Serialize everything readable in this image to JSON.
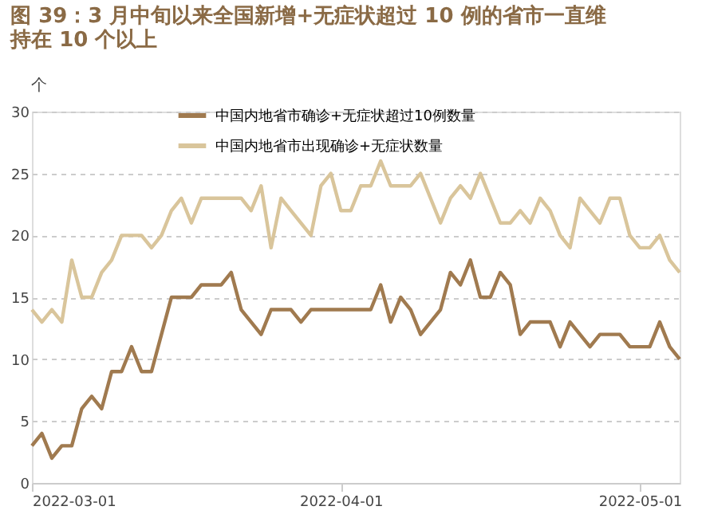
{
  "chart_data": {
    "type": "line",
    "title": "图 39：3 月中旬以来全国新增+无症状超过 10 例的省市一直维持在 10 个以上",
    "ylabel": "个",
    "x": [
      "2022-03-01",
      "2022-03-02",
      "2022-03-03",
      "2022-03-04",
      "2022-03-05",
      "2022-03-06",
      "2022-03-07",
      "2022-03-08",
      "2022-03-09",
      "2022-03-10",
      "2022-03-11",
      "2022-03-12",
      "2022-03-13",
      "2022-03-14",
      "2022-03-15",
      "2022-03-16",
      "2022-03-17",
      "2022-03-18",
      "2022-03-19",
      "2022-03-20",
      "2022-03-21",
      "2022-03-22",
      "2022-03-23",
      "2022-03-24",
      "2022-03-25",
      "2022-03-26",
      "2022-03-27",
      "2022-03-28",
      "2022-03-29",
      "2022-03-30",
      "2022-03-31",
      "2022-04-01",
      "2022-04-02",
      "2022-04-03",
      "2022-04-04",
      "2022-04-05",
      "2022-04-06",
      "2022-04-07",
      "2022-04-08",
      "2022-04-09",
      "2022-04-10",
      "2022-04-11",
      "2022-04-12",
      "2022-04-13",
      "2022-04-14",
      "2022-04-15",
      "2022-04-16",
      "2022-04-17",
      "2022-04-18",
      "2022-04-19",
      "2022-04-20",
      "2022-04-21",
      "2022-04-22",
      "2022-04-23",
      "2022-04-24",
      "2022-04-25",
      "2022-04-26",
      "2022-04-27",
      "2022-04-28",
      "2022-04-29",
      "2022-04-30",
      "2022-05-01",
      "2022-05-02",
      "2022-05-03",
      "2022-05-04",
      "2022-05-05"
    ],
    "series": [
      {
        "name": "中国内地省市确诊+无症状超过10例数量",
        "color": "#a07a4f",
        "values": [
          3,
          4,
          2,
          3,
          3,
          6,
          7,
          6,
          9,
          9,
          11,
          9,
          9,
          12,
          15,
          15,
          15,
          16,
          16,
          16,
          17,
          14,
          13,
          12,
          14,
          14,
          14,
          13,
          14,
          14,
          14,
          14,
          14,
          14,
          14,
          16,
          13,
          15,
          14,
          12,
          13,
          14,
          17,
          16,
          18,
          15,
          15,
          17,
          16,
          12,
          13,
          13,
          13,
          11,
          13,
          12,
          11,
          12,
          12,
          12,
          11,
          11,
          11,
          13,
          11,
          10
        ]
      },
      {
        "name": "中国内地省市出现确诊+无症状数量",
        "color": "#d9c59b",
        "values": [
          14,
          13,
          14,
          13,
          18,
          15,
          15,
          17,
          18,
          20,
          20,
          20,
          19,
          20,
          22,
          23,
          21,
          23,
          23,
          23,
          23,
          23,
          22,
          24,
          19,
          23,
          22,
          21,
          20,
          24,
          25,
          22,
          22,
          24,
          24,
          26,
          24,
          24,
          24,
          25,
          23,
          21,
          23,
          24,
          23,
          25,
          23,
          21,
          21,
          22,
          21,
          23,
          22,
          20,
          19,
          23,
          22,
          21,
          23,
          23,
          20,
          19,
          19,
          20,
          18,
          17
        ]
      }
    ],
    "xlim": [
      "2022-03-01",
      "2022-05-05"
    ],
    "xticks": [
      "2022-03-01",
      "2022-04-01",
      "2022-05-01"
    ],
    "ylim": [
      0,
      30
    ],
    "yticks": [
      0,
      5,
      10,
      15,
      20,
      25,
      30
    ],
    "grid": "y",
    "legend": "top",
    "line_style": "solid",
    "marker": "none"
  }
}
